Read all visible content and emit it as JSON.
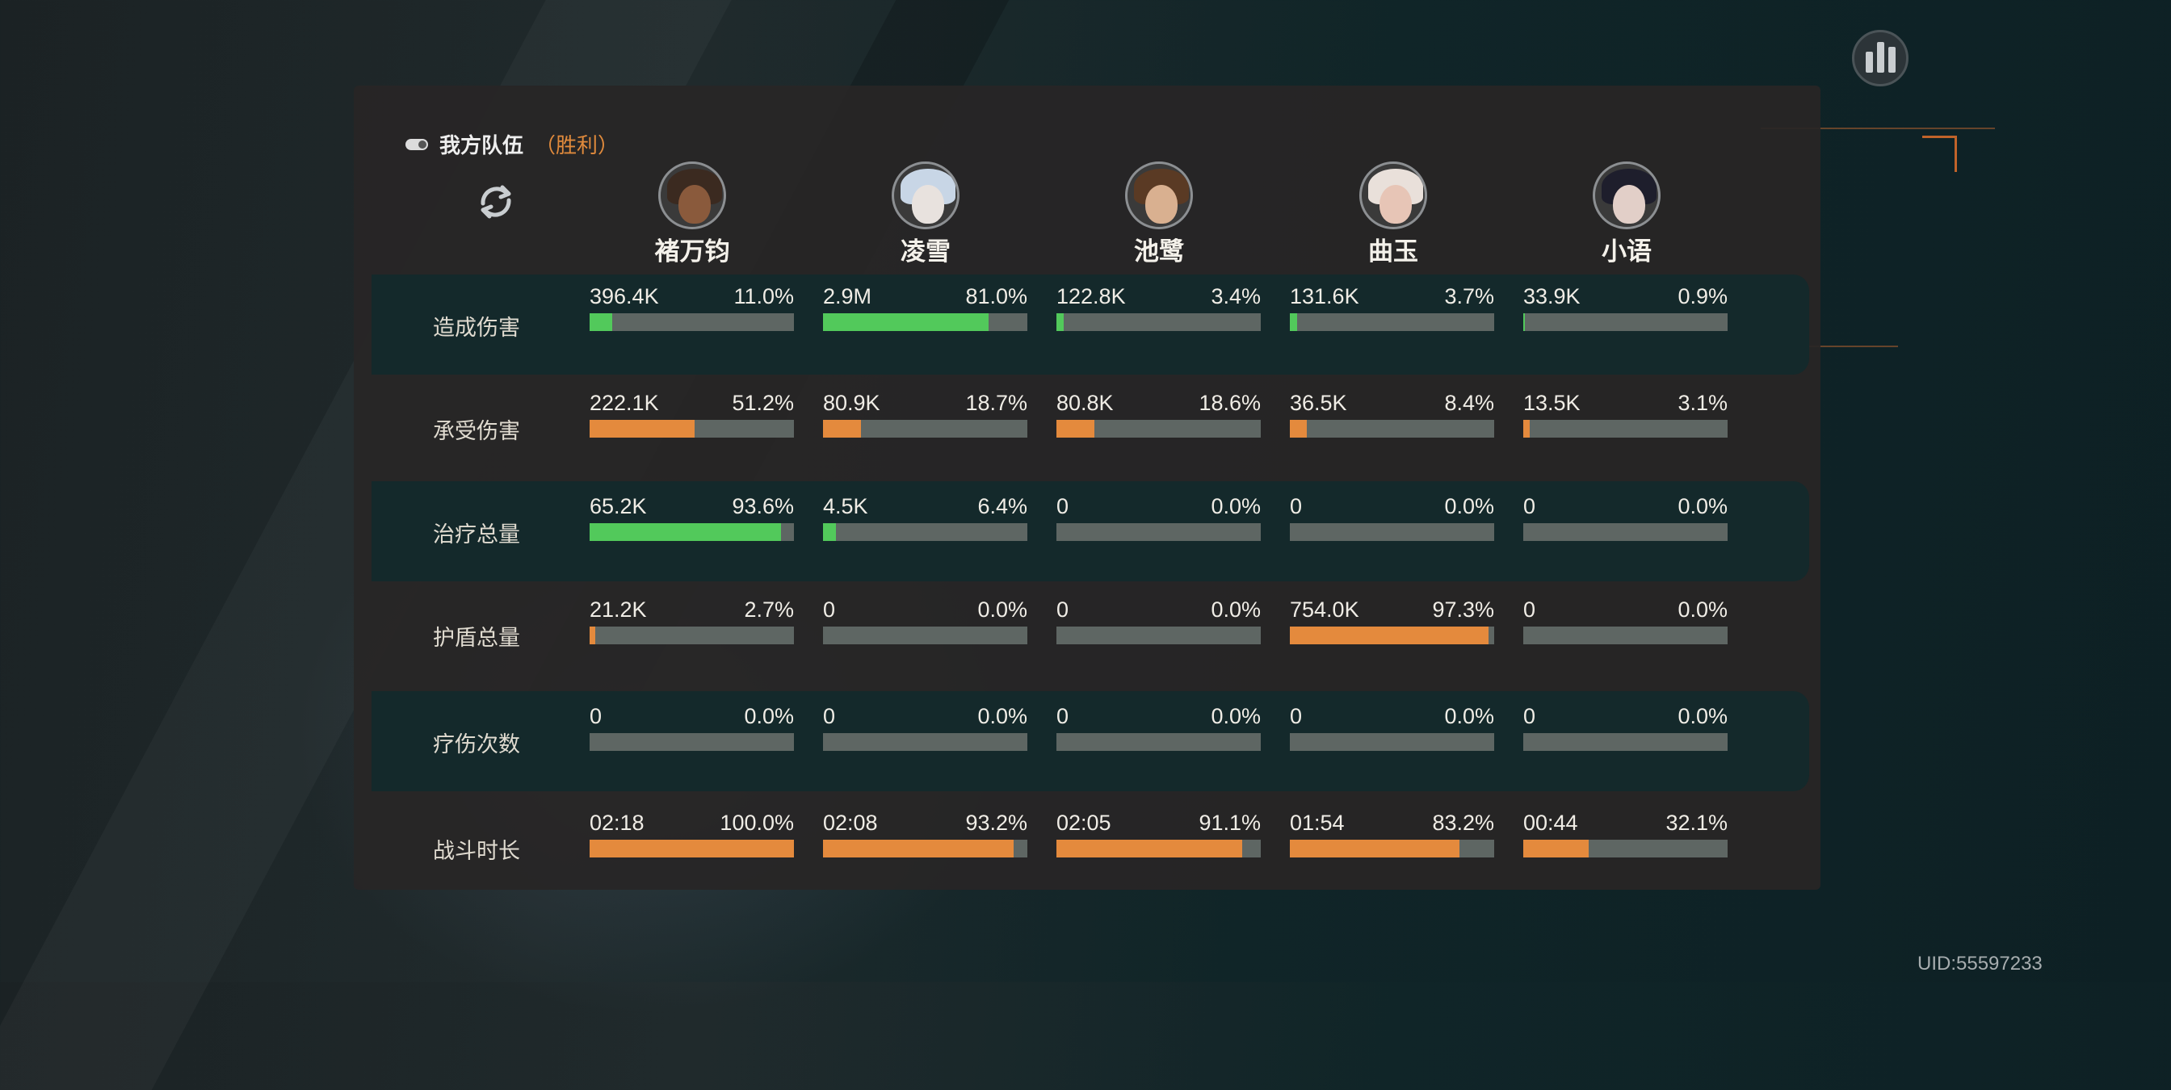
{
  "team": {
    "label": "我方队伍",
    "result": "（胜利）"
  },
  "uid": "UID:55597233",
  "colors": {
    "green": "#52c95b",
    "orange": "#e48a3d",
    "track": "#5e6663",
    "accent": "#e08a3c"
  },
  "icons": {
    "refresh": "refresh-icon",
    "stats": "bar-chart-icon",
    "toggle": "toggle-icon"
  },
  "heroes": [
    {
      "name": "褚万钧",
      "skin": "#8a5a3c",
      "hair": "#3b2a20"
    },
    {
      "name": "凌雪",
      "skin": "#e8e2de",
      "hair": "#c8d6e6"
    },
    {
      "name": "池鹭",
      "skin": "#d9b090",
      "hair": "#5a3a24"
    },
    {
      "name": "曲玉",
      "skin": "#e7c5b6",
      "hair": "#e9e0da"
    },
    {
      "name": "小语",
      "skin": "#e2cfc8",
      "hair": "#1e1e2c"
    }
  ],
  "stats": [
    {
      "label": "造成伤害",
      "color": "green",
      "values": [
        {
          "value": "396.4K",
          "pct": "11.0%",
          "fill": 11.0
        },
        {
          "value": "2.9M",
          "pct": "81.0%",
          "fill": 81.0
        },
        {
          "value": "122.8K",
          "pct": "3.4%",
          "fill": 3.4
        },
        {
          "value": "131.6K",
          "pct": "3.7%",
          "fill": 3.7
        },
        {
          "value": "33.9K",
          "pct": "0.9%",
          "fill": 0.9
        }
      ]
    },
    {
      "label": "承受伤害",
      "color": "orange",
      "values": [
        {
          "value": "222.1K",
          "pct": "51.2%",
          "fill": 51.2
        },
        {
          "value": "80.9K",
          "pct": "18.7%",
          "fill": 18.7
        },
        {
          "value": "80.8K",
          "pct": "18.6%",
          "fill": 18.6
        },
        {
          "value": "36.5K",
          "pct": "8.4%",
          "fill": 8.4
        },
        {
          "value": "13.5K",
          "pct": "3.1%",
          "fill": 3.1
        }
      ]
    },
    {
      "label": "治疗总量",
      "color": "green",
      "values": [
        {
          "value": "65.2K",
          "pct": "93.6%",
          "fill": 93.6
        },
        {
          "value": "4.5K",
          "pct": "6.4%",
          "fill": 6.4
        },
        {
          "value": "0",
          "pct": "0.0%",
          "fill": 0
        },
        {
          "value": "0",
          "pct": "0.0%",
          "fill": 0
        },
        {
          "value": "0",
          "pct": "0.0%",
          "fill": 0
        }
      ]
    },
    {
      "label": "护盾总量",
      "color": "orange",
      "values": [
        {
          "value": "21.2K",
          "pct": "2.7%",
          "fill": 2.7
        },
        {
          "value": "0",
          "pct": "0.0%",
          "fill": 0
        },
        {
          "value": "0",
          "pct": "0.0%",
          "fill": 0
        },
        {
          "value": "754.0K",
          "pct": "97.3%",
          "fill": 97.3
        },
        {
          "value": "0",
          "pct": "0.0%",
          "fill": 0
        }
      ]
    },
    {
      "label": "疗伤次数",
      "color": "green",
      "values": [
        {
          "value": "0",
          "pct": "0.0%",
          "fill": 0
        },
        {
          "value": "0",
          "pct": "0.0%",
          "fill": 0
        },
        {
          "value": "0",
          "pct": "0.0%",
          "fill": 0
        },
        {
          "value": "0",
          "pct": "0.0%",
          "fill": 0
        },
        {
          "value": "0",
          "pct": "0.0%",
          "fill": 0
        }
      ]
    },
    {
      "label": "战斗时长",
      "color": "orange",
      "values": [
        {
          "value": "02:18",
          "pct": "100.0%",
          "fill": 100.0
        },
        {
          "value": "02:08",
          "pct": "93.2%",
          "fill": 93.2
        },
        {
          "value": "02:05",
          "pct": "91.1%",
          "fill": 91.1
        },
        {
          "value": "01:54",
          "pct": "83.2%",
          "fill": 83.2
        },
        {
          "value": "00:44",
          "pct": "32.1%",
          "fill": 32.1
        }
      ]
    }
  ]
}
